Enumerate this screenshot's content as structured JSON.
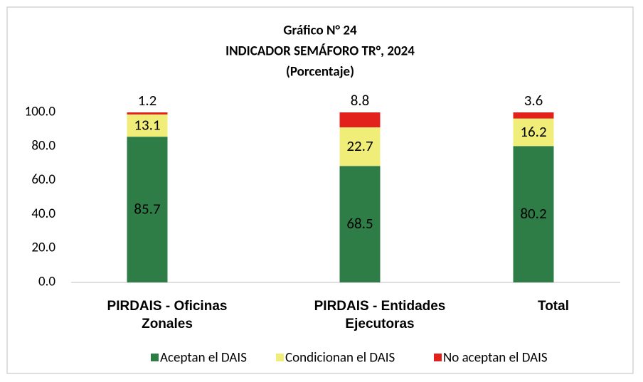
{
  "chart_data": {
    "type": "stacked_bar",
    "title": [
      "Gráfico N° 24",
      "INDICADOR SEMÁFORO TR°, 2024",
      "(Porcentaje)"
    ],
    "categories": [
      "PIRDAIS - Oficinas Zonales",
      "PIRDAIS - Entidades Ejecutoras",
      "Total"
    ],
    "series": [
      {
        "name": "Aceptan el DAIS",
        "color": "#2e7d46",
        "values": [
          85.7,
          68.5,
          80.2
        ]
      },
      {
        "name": "Condicionan el DAIS",
        "color": "#f0ee78",
        "values": [
          13.1,
          22.7,
          16.2
        ]
      },
      {
        "name": "No aceptan el DAIS",
        "color": "#e3211c",
        "values": [
          1.2,
          8.8,
          3.6
        ]
      }
    ],
    "ylim": [
      0,
      100
    ],
    "yticks": [
      {
        "value": 0,
        "label": "0.0"
      },
      {
        "value": 20,
        "label": "20.0"
      },
      {
        "value": 40,
        "label": "40.0"
      },
      {
        "value": 60,
        "label": "60.0"
      },
      {
        "value": 80,
        "label": "80.0"
      },
      {
        "value": 100,
        "label": "100.0"
      }
    ],
    "legend": "bottom"
  }
}
